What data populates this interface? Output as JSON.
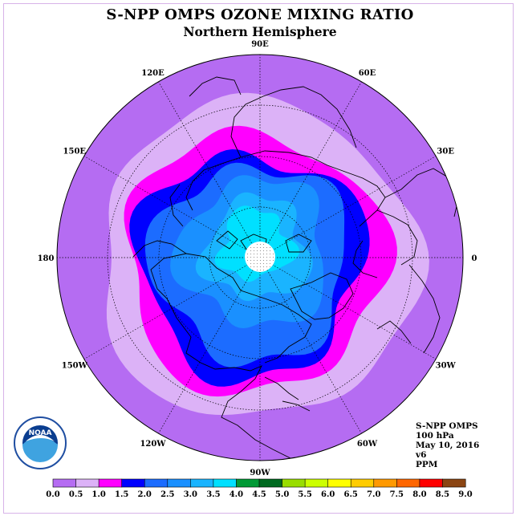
{
  "title": "S-NPP OMPS OZONE MIXING RATIO",
  "subtitle": "Northern Hemisphere",
  "longitude_labels": [
    {
      "text": "90E",
      "lon": 90
    },
    {
      "text": "60E",
      "lon": 60
    },
    {
      "text": "30E",
      "lon": 30
    },
    {
      "text": "0",
      "lon": 0
    },
    {
      "text": "30W",
      "lon": -30
    },
    {
      "text": "60W",
      "lon": -60
    },
    {
      "text": "90W",
      "lon": -90
    },
    {
      "text": "120W",
      "lon": -120
    },
    {
      "text": "150W",
      "lon": -150
    },
    {
      "text": "180",
      "lon": 180
    },
    {
      "text": "150E",
      "lon": 150
    },
    {
      "text": "120E",
      "lon": 120
    }
  ],
  "info": {
    "instrument": "S-NPP OMPS",
    "level": "100 hPa",
    "date": "May 10, 2016",
    "version": "v6",
    "units": "PPM"
  },
  "logo_text": "NOAA",
  "colorbar": {
    "ticks": [
      "0.0",
      "0.5",
      "1.0",
      "1.5",
      "2.0",
      "2.5",
      "3.0",
      "3.5",
      "4.0",
      "4.5",
      "5.0",
      "5.5",
      "6.0",
      "6.5",
      "7.0",
      "7.5",
      "8.0",
      "8.5",
      "9.0"
    ],
    "colors": [
      "#b56cf2",
      "#dcb2f7",
      "#ff00ff",
      "#0000ff",
      "#1c6cff",
      "#1a90ff",
      "#1ab4ff",
      "#00e0ff",
      "#009a35",
      "#006a20",
      "#99dd00",
      "#ccff00",
      "#ffff00",
      "#ffcc00",
      "#ff9900",
      "#ff6600",
      "#ff0000",
      "#8b4513"
    ]
  },
  "contour_levels": [
    {
      "level": "0.0-0.5",
      "color": "#b56cf2"
    },
    {
      "level": "0.5-1.0",
      "color": "#dcb2f7"
    },
    {
      "level": "1.0-1.5",
      "color": "#ff00ff"
    },
    {
      "level": "1.5-2.0",
      "color": "#0000ff"
    },
    {
      "level": "2.0-2.5",
      "color": "#1c6cff"
    },
    {
      "level": "2.5-3.0",
      "color": "#1a90ff"
    },
    {
      "level": "3.0-3.5",
      "color": "#1ab4ff"
    },
    {
      "level": "3.5-4.0",
      "color": "#00e0ff"
    }
  ]
}
